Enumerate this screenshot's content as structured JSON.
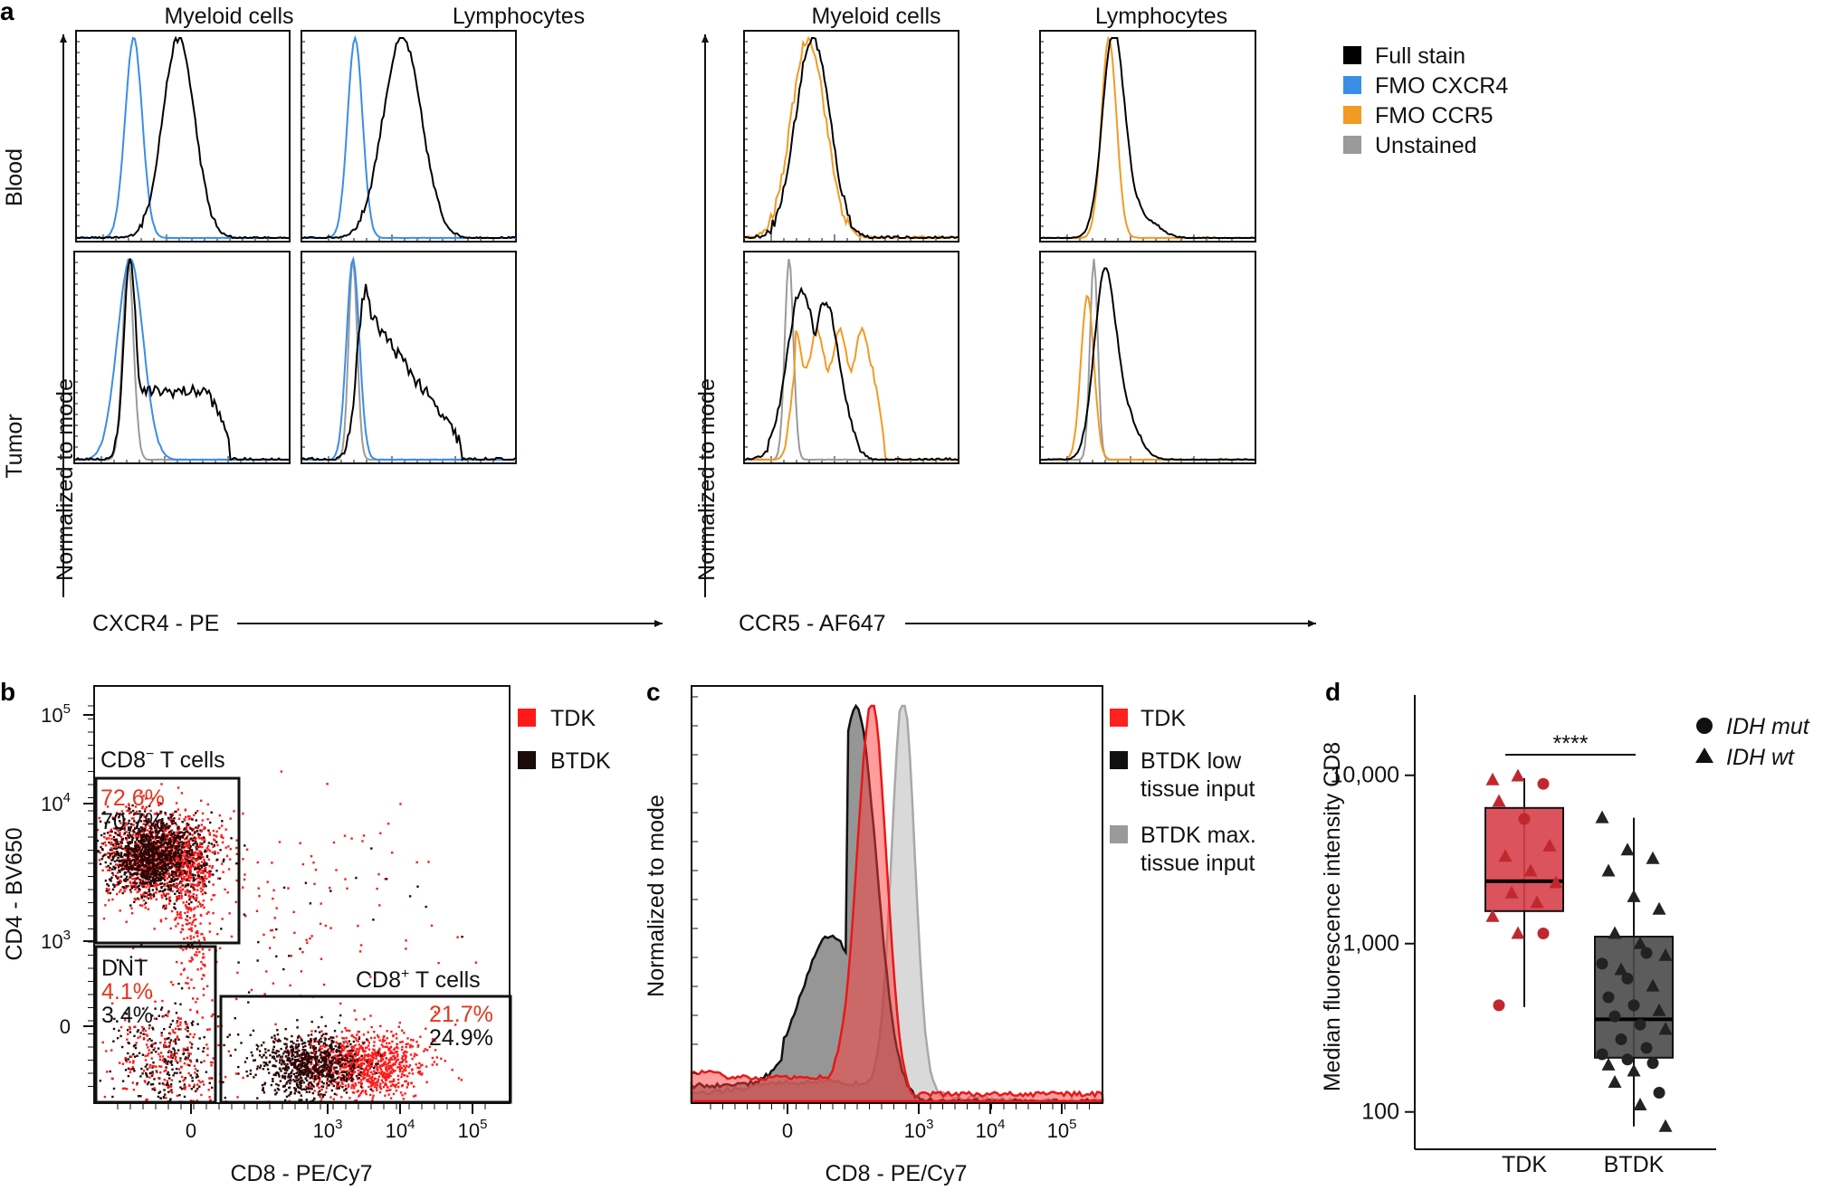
{
  "panel_labels": {
    "a": "a",
    "b": "b",
    "c": "c",
    "d": "d"
  },
  "panel_a": {
    "col_titles": [
      "Myeloid cells",
      "Lymphocytes",
      "Myeloid cells",
      "Lymphocytes"
    ],
    "row_labels": [
      "Blood",
      "Tumor"
    ],
    "ylabel_left": "Normalized to mode",
    "ylabel_right": "Normalized to mode",
    "xlabel_left": "CXCR4 - PE",
    "xlabel_right": "CCR5 - AF647",
    "legend": [
      {
        "label": "Full stain",
        "color": "#000000"
      },
      {
        "label": "FMO CXCR4",
        "color": "#3a8ee6"
      },
      {
        "label": "FMO CCR5",
        "color": "#f39a23"
      },
      {
        "label": "Unstained",
        "color": "#9a9a9a"
      }
    ]
  },
  "panel_b": {
    "xlabel": "CD8 - PE/Cy7",
    "ylabel": "CD4 - BV650",
    "x_ticks": [
      "0",
      "10",
      "10",
      "10"
    ],
    "x_tick_exp": [
      "",
      "3",
      "4",
      "5"
    ],
    "y_ticks": [
      "10",
      "10",
      "10",
      "0"
    ],
    "y_tick_exp": [
      "5",
      "4",
      "3",
      ""
    ],
    "legend": [
      {
        "label": "TDK",
        "color": "#ff1a1a"
      },
      {
        "label": "BTDK",
        "color": "#1a0a0a"
      }
    ],
    "gates": {
      "cd8neg": {
        "name": "CD8",
        "sup": "−",
        "suffix": " T cells",
        "tdk": "72.6%",
        "btdk": "70.7%"
      },
      "dnt": {
        "name": "DNT",
        "tdk": "4.1%",
        "btdk": "3.4%"
      },
      "cd8pos": {
        "name": "CD8",
        "sup": "+",
        "suffix": " T cells",
        "tdk": "21.7%",
        "btdk": "24.9%"
      }
    }
  },
  "panel_c": {
    "xlabel": "CD8 - PE/Cy7",
    "ylabel": "Normalized to mode",
    "x_ticks": [
      "0",
      "10",
      "10",
      "10"
    ],
    "x_tick_exp": [
      "",
      "3",
      "4",
      "5"
    ],
    "legend": [
      {
        "label": "TDK",
        "color": "#ff2020"
      },
      {
        "label": "BTDK low",
        "label2": "tissue input",
        "color": "#111111"
      },
      {
        "label": "BTDK max.",
        "label2": "tissue input",
        "color": "#9a9a9a"
      }
    ]
  },
  "chart_data": {
    "type": "box",
    "title": "",
    "xlabel": "",
    "ylabel": "Median fluorescence intensity CD8",
    "yscale": "log",
    "ylim": [
      60,
      30000
    ],
    "y_ticks": [
      100,
      1000,
      10000
    ],
    "y_tick_labels": [
      "100",
      "1,000",
      "10,000"
    ],
    "categories": [
      "TDK",
      "BTDK"
    ],
    "significance": "****",
    "legend": [
      {
        "label": "IDH mut",
        "marker": "circle"
      },
      {
        "label": "IDH wt",
        "marker": "triangle"
      }
    ],
    "series": [
      {
        "name": "TDK",
        "color": "#d7404a",
        "edge": "#c0282f",
        "box": {
          "q1": 1560,
          "median": 2350,
          "q3": 6400,
          "whisker_low": 420,
          "whisker_high": 9600
        },
        "points": [
          {
            "v": 9400,
            "m": "triangle"
          },
          {
            "v": 9900,
            "m": "triangle"
          },
          {
            "v": 8900,
            "m": "circle"
          },
          {
            "v": 7000,
            "m": "triangle"
          },
          {
            "v": 5500,
            "m": "circle"
          },
          {
            "v": 3800,
            "m": "triangle"
          },
          {
            "v": 3300,
            "m": "triangle"
          },
          {
            "v": 2700,
            "m": "triangle"
          },
          {
            "v": 2300,
            "m": "triangle"
          },
          {
            "v": 2000,
            "m": "triangle"
          },
          {
            "v": 1750,
            "m": "triangle"
          },
          {
            "v": 1450,
            "m": "triangle"
          },
          {
            "v": 1150,
            "m": "triangle"
          },
          {
            "v": 1150,
            "m": "circle"
          },
          {
            "v": 430,
            "m": "circle"
          }
        ]
      },
      {
        "name": "BTDK",
        "color": "#4a4a4a",
        "edge": "#222222",
        "box": {
          "q1": 210,
          "median": 355,
          "q3": 1100,
          "whisker_low": 82,
          "whisker_high": 5600
        },
        "points": [
          {
            "v": 5600,
            "m": "triangle"
          },
          {
            "v": 3600,
            "m": "triangle"
          },
          {
            "v": 3200,
            "m": "triangle"
          },
          {
            "v": 2700,
            "m": "triangle"
          },
          {
            "v": 1900,
            "m": "triangle"
          },
          {
            "v": 1600,
            "m": "triangle"
          },
          {
            "v": 1150,
            "m": "triangle"
          },
          {
            "v": 1000,
            "m": "triangle"
          },
          {
            "v": 850,
            "m": "triangle"
          },
          {
            "v": 700,
            "m": "triangle"
          },
          {
            "v": 880,
            "m": "circle"
          },
          {
            "v": 760,
            "m": "circle"
          },
          {
            "v": 620,
            "m": "circle"
          },
          {
            "v": 560,
            "m": "triangle"
          },
          {
            "v": 480,
            "m": "circle"
          },
          {
            "v": 430,
            "m": "circle"
          },
          {
            "v": 400,
            "m": "triangle"
          },
          {
            "v": 370,
            "m": "circle"
          },
          {
            "v": 330,
            "m": "circle"
          },
          {
            "v": 310,
            "m": "triangle"
          },
          {
            "v": 270,
            "m": "circle"
          },
          {
            "v": 240,
            "m": "circle"
          },
          {
            "v": 220,
            "m": "circle"
          },
          {
            "v": 205,
            "m": "circle"
          },
          {
            "v": 195,
            "m": "circle"
          },
          {
            "v": 190,
            "m": "triangle"
          },
          {
            "v": 175,
            "m": "triangle"
          },
          {
            "v": 130,
            "m": "circle"
          },
          {
            "v": 150,
            "m": "triangle"
          },
          {
            "v": 110,
            "m": "triangle"
          },
          {
            "v": 82,
            "m": "triangle"
          }
        ]
      }
    ]
  }
}
